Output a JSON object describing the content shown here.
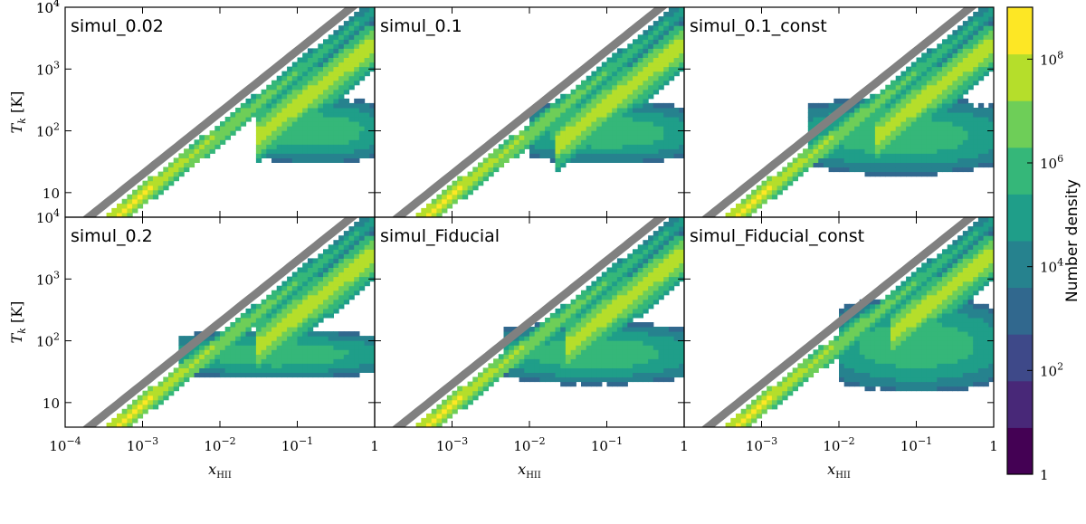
{
  "chart_data": {
    "type": "heatmap",
    "panels": [
      {
        "title": "simul_0.02",
        "lower_cut": 0.03,
        "lower_band_top": 350,
        "lower_band_bottom": 30,
        "upper_spur_start": 0.03
      },
      {
        "title": "simul_0.1",
        "lower_cut": 0.01,
        "lower_band_top": 300,
        "lower_band_bottom": 30,
        "upper_spur_start": 0.02
      },
      {
        "title": "simul_0.1_const",
        "lower_cut": 0.004,
        "lower_band_top": 350,
        "lower_band_bottom": 20,
        "upper_spur_start": 0.03
      },
      {
        "title": "simul_0.2",
        "lower_cut": 0.003,
        "lower_band_top": 150,
        "lower_band_bottom": 25,
        "upper_spur_start": 0.03
      },
      {
        "title": "simul_Fiducial",
        "lower_cut": 0.005,
        "lower_band_top": 200,
        "lower_band_bottom": 20,
        "upper_spur_start": 0.03
      },
      {
        "title": "simul_Fiducial_const",
        "lower_cut": 0.01,
        "lower_band_top": 500,
        "lower_band_bottom": 15,
        "upper_spur_start": 0.05
      }
    ],
    "xlabel": "x_HII",
    "ylabel": "T_k [K]",
    "xscale": "log",
    "yscale": "log",
    "xlim": [
      0.0001,
      1
    ],
    "ylim": [
      4,
      10000
    ],
    "x_ticks": [
      "10⁻⁴",
      "10⁻³",
      "10⁻²",
      "10⁻¹",
      "1"
    ],
    "y_ticks": [
      "10",
      "10²",
      "10³",
      "10⁴"
    ],
    "colorbar": {
      "label": "Number density",
      "scale": "log",
      "range": [
        1,
        1000000000
      ],
      "ticks": [
        "1",
        "10²",
        "10⁴",
        "10⁶",
        "10⁸"
      ],
      "colormap": [
        "#440154",
        "#482878",
        "#3e4989",
        "#31688e",
        "#26828e",
        "#1f9e89",
        "#35b779",
        "#6ece58",
        "#b5de2b",
        "#fde725"
      ]
    },
    "overlay_color": "#808080",
    "grid": false
  }
}
